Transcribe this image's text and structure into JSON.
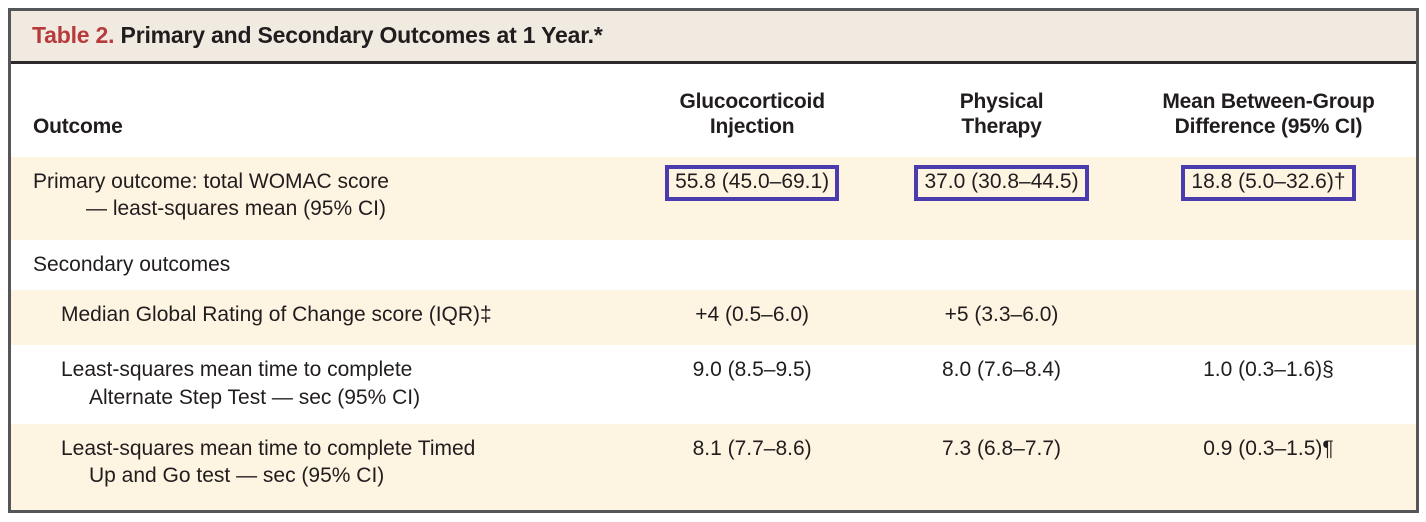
{
  "colors": {
    "accent_red": "#b73a3c",
    "highlight_box_purple": "#4b3cad",
    "row_shade_cream": "#fdf4e2",
    "title_bar_cream": "#f1eae0",
    "frame_border_gray": "#55565a",
    "text_black": "#211d1e"
  },
  "title": {
    "label": "Table 2.",
    "text": "Primary and Secondary Outcomes at 1 Year.*"
  },
  "header": {
    "outcome": "Outcome",
    "gi_line1": "Glucocorticoid",
    "gi_line2": "Injection",
    "pt_line1": "Physical",
    "pt_line2": "Therapy",
    "diff_line1": "Mean Between-Group",
    "diff_line2": "Difference (95% CI)"
  },
  "rows": [
    {
      "label_line1": "Primary outcome: total WOMAC score",
      "label_line2": "— least-squares mean (95% CI)",
      "glucocorticoid": "55.8 (45.0–69.1)",
      "physical_therapy": "37.0 (30.8–44.5)",
      "difference": "18.8 (5.0–32.6)†",
      "highlighted": true
    },
    {
      "label_line1": "Secondary outcomes",
      "glucocorticoid": "",
      "physical_therapy": "",
      "difference": ""
    },
    {
      "label_line1": "Median Global Rating of Change score (IQR)‡",
      "glucocorticoid": "+4 (0.5–6.0)",
      "physical_therapy": "+5 (3.3–6.0)",
      "difference": ""
    },
    {
      "label_line1": "Least-squares mean time to complete",
      "label_line2": "Alternate Step Test — sec (95% CI)",
      "glucocorticoid": "9.0 (8.5–9.5)",
      "physical_therapy": "8.0 (7.6–8.4)",
      "difference": "1.0 (0.3–1.6)§"
    },
    {
      "label_line1": "Least-squares mean time to complete Timed",
      "label_line2": "Up and Go test — sec (95% CI)",
      "glucocorticoid": "8.1 (7.7–8.6)",
      "physical_therapy": "7.3 (6.8–7.7)",
      "difference": "0.9 (0.3–1.5)¶"
    }
  ]
}
